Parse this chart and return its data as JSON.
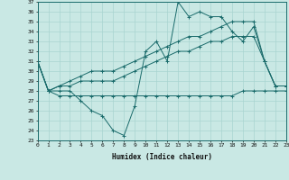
{
  "xlabel": "Humidex (Indice chaleur)",
  "xlim": [
    0,
    23
  ],
  "ylim": [
    23,
    37
  ],
  "yticks": [
    23,
    24,
    25,
    26,
    27,
    28,
    29,
    30,
    31,
    32,
    33,
    34,
    35,
    36,
    37
  ],
  "xticks": [
    0,
    1,
    2,
    3,
    4,
    5,
    6,
    7,
    8,
    9,
    10,
    11,
    12,
    13,
    14,
    15,
    16,
    17,
    18,
    19,
    20,
    21,
    22,
    23
  ],
  "bg_color": "#c9e8e4",
  "grid_color": "#a8d4d0",
  "line_color": "#1a6b6b",
  "series": [
    {
      "x": [
        0,
        1,
        2,
        3,
        4,
        5,
        6,
        7,
        8,
        9,
        10,
        11,
        12,
        13,
        14,
        15,
        16,
        17,
        18,
        19,
        20,
        21,
        22,
        23
      ],
      "y": [
        31,
        28,
        28,
        28,
        27,
        26,
        25.5,
        24,
        23.5,
        26.5,
        32,
        33,
        31,
        37,
        35.5,
        36,
        35.5,
        35.5,
        34,
        33,
        34.5,
        31,
        28.5,
        28.5
      ]
    },
    {
      "x": [
        0,
        1,
        2,
        3,
        4,
        5,
        6,
        7,
        8,
        9,
        10,
        11,
        12,
        13,
        14,
        15,
        16,
        17,
        18,
        19,
        20,
        21,
        22,
        23
      ],
      "y": [
        31,
        28,
        28.5,
        29,
        29.5,
        30,
        30,
        30,
        30.5,
        31,
        31.5,
        32,
        32.5,
        33,
        33.5,
        33.5,
        34,
        34.5,
        35,
        35,
        35,
        31,
        28.5,
        28.5
      ]
    },
    {
      "x": [
        0,
        1,
        2,
        3,
        4,
        5,
        6,
        7,
        8,
        9,
        10,
        11,
        12,
        13,
        14,
        15,
        16,
        17,
        18,
        19,
        20,
        21,
        22,
        23
      ],
      "y": [
        31,
        28,
        28.5,
        28.5,
        29,
        29,
        29,
        29,
        29.5,
        30,
        30.5,
        31,
        31.5,
        32,
        32,
        32.5,
        33,
        33,
        33.5,
        33.5,
        33.5,
        31,
        28.5,
        28.5
      ]
    },
    {
      "x": [
        0,
        1,
        2,
        3,
        4,
        5,
        6,
        7,
        8,
        9,
        10,
        11,
        12,
        13,
        14,
        15,
        16,
        17,
        18,
        19,
        20,
        21,
        22,
        23
      ],
      "y": [
        31,
        28,
        27.5,
        27.5,
        27.5,
        27.5,
        27.5,
        27.5,
        27.5,
        27.5,
        27.5,
        27.5,
        27.5,
        27.5,
        27.5,
        27.5,
        27.5,
        27.5,
        27.5,
        28,
        28,
        28,
        28,
        28
      ]
    }
  ]
}
